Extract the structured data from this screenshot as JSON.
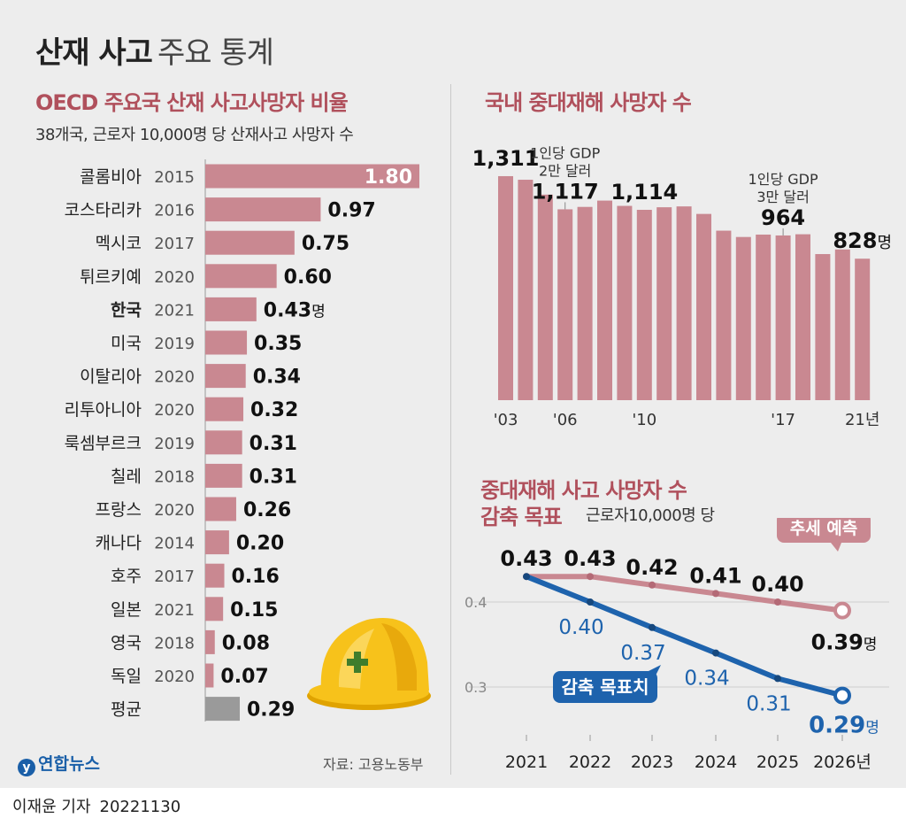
{
  "header": {
    "title_bold": "산재 사고",
    "title_light": "주요 통계"
  },
  "oecd": {
    "title": "OECD 주요국 산재 사고사망자 비율",
    "subtitle": "38개국, 근로자 10,000명 당 산재사고 사망자 수",
    "highlight_unit": "명"
  },
  "domestic": {
    "title": "국내 중대재해 사망자 수",
    "unit": "명"
  },
  "target": {
    "title_line1": "중대재해 사고 사망자 수",
    "title_line2": "감축 목표",
    "subtitle": "근로자10,000명 당",
    "trend_callout": "추세 예측",
    "target_callout": "감축 목표치",
    "unit": "명"
  },
  "source": "자료: 고용노동부",
  "logo": {
    "mark": "y",
    "text": "연합뉴스"
  },
  "footer": {
    "reporter": "이재윤 기자",
    "date": "20221130"
  },
  "colors": {
    "bar": "#c98891",
    "bar_dark": "#b46a76",
    "avg": "#9a9a9a",
    "trend": "#c98891",
    "target": "#1e63ad",
    "title_red": "#b0505c"
  },
  "chart_data": [
    {
      "type": "bar",
      "orientation": "horizontal",
      "title": "OECD 주요국 산재 사고사망자 비율",
      "subtitle": "38개국, 근로자 10,000명 당 산재사고 사망자 수",
      "categories": [
        "콜롬비아",
        "코스타리카",
        "멕시코",
        "튀르키예",
        "한국",
        "미국",
        "이탈리아",
        "리투아니아",
        "룩셈부르크",
        "칠레",
        "프랑스",
        "캐나다",
        "호주",
        "일본",
        "영국",
        "독일",
        "평균"
      ],
      "years": [
        "2015",
        "2016",
        "2017",
        "2020",
        "2021",
        "2019",
        "2020",
        "2020",
        "2019",
        "2018",
        "2020",
        "2014",
        "2017",
        "2021",
        "2018",
        "2020",
        ""
      ],
      "values": [
        1.8,
        0.97,
        0.75,
        0.6,
        0.43,
        0.35,
        0.34,
        0.32,
        0.31,
        0.31,
        0.26,
        0.2,
        0.16,
        0.15,
        0.08,
        0.07,
        0.29
      ],
      "labels": [
        "1.80",
        "0.97",
        "0.75",
        "0.60",
        "0.43",
        "0.35",
        "0.34",
        "0.32",
        "0.31",
        "0.31",
        "0.26",
        "0.20",
        "0.16",
        "0.15",
        "0.08",
        "0.07",
        "0.29"
      ],
      "highlight": "한국",
      "average": "평균"
    },
    {
      "type": "bar",
      "title": "국내 중대재해 사망자 수",
      "x": [
        2003,
        2004,
        2005,
        2006,
        2007,
        2008,
        2009,
        2010,
        2011,
        2012,
        2013,
        2014,
        2015,
        2016,
        2017,
        2018,
        2019,
        2020,
        2021
      ],
      "values": [
        1311,
        1290,
        1203,
        1117,
        1131,
        1168,
        1137,
        1114,
        1129,
        1134,
        1090,
        992,
        955,
        969,
        964,
        971,
        855,
        882,
        828
      ],
      "tick_labels": [
        "'03",
        "'06",
        "'10",
        "'17",
        "21년"
      ],
      "tick_years": [
        2003,
        2006,
        2010,
        2017,
        2021
      ],
      "value_labels": [
        {
          "year": 2003,
          "text": "1,311"
        },
        {
          "year": 2006,
          "text": "1,117"
        },
        {
          "year": 2010,
          "text": "1,114"
        },
        {
          "year": 2017,
          "text": "964"
        },
        {
          "year": 2021,
          "text": "828"
        }
      ],
      "annotations": [
        {
          "year": 2006,
          "line1": "1인당 GDP",
          "line2": "2만 달러"
        },
        {
          "year": 2017,
          "line1": "1인당 GDP",
          "line2": "3만 달러"
        }
      ]
    },
    {
      "type": "line",
      "title": "중대재해 사고 사망자 수 감축 목표",
      "x": [
        "2021",
        "2022",
        "2023",
        "2024",
        "2025",
        "2026년"
      ],
      "ylim": [
        0.25,
        0.46
      ],
      "yticks": [
        "0.4",
        "0.3"
      ],
      "series": [
        {
          "name": "추세 예측",
          "values": [
            0.43,
            0.43,
            0.42,
            0.41,
            0.4,
            0.39
          ],
          "labels": [
            "0.43",
            "0.43",
            "0.42",
            "0.41",
            "0.40",
            "0.39"
          ]
        },
        {
          "name": "감축 목표치",
          "values": [
            0.43,
            0.4,
            0.37,
            0.34,
            0.31,
            0.29
          ],
          "labels": [
            "",
            "0.40",
            "0.37",
            "0.34",
            "0.31",
            "0.29"
          ]
        }
      ]
    }
  ]
}
